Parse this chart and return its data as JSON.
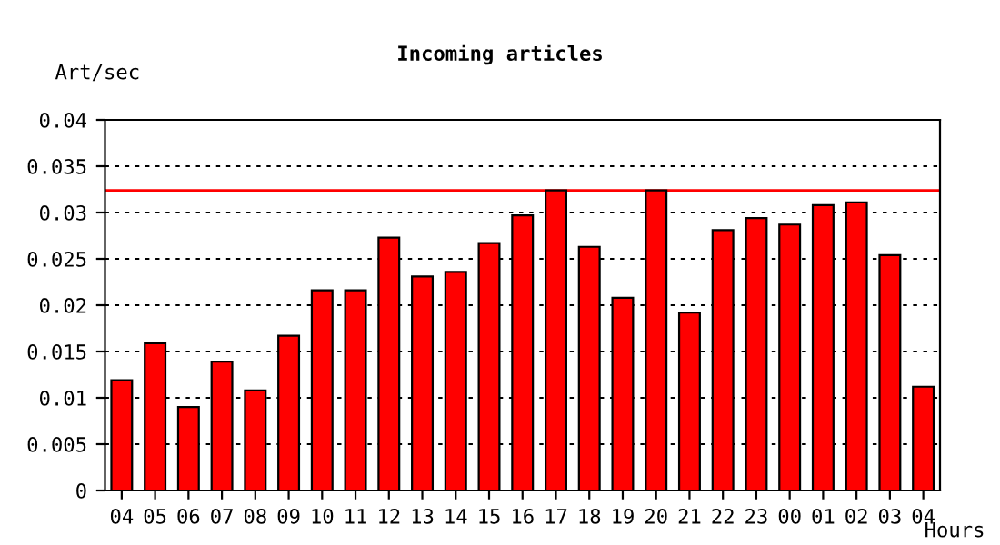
{
  "chart_data": {
    "type": "bar",
    "title": "Incoming articles",
    "ylabel": "Art/sec",
    "xlabel": "Hours",
    "categories": [
      "04",
      "05",
      "06",
      "07",
      "08",
      "09",
      "10",
      "11",
      "12",
      "13",
      "14",
      "15",
      "16",
      "17",
      "18",
      "19",
      "20",
      "21",
      "22",
      "23",
      "00",
      "01",
      "02",
      "03",
      "04"
    ],
    "values": [
      0.0119,
      0.0159,
      0.009,
      0.0139,
      0.0108,
      0.0167,
      0.0216,
      0.0216,
      0.0273,
      0.0231,
      0.0236,
      0.0267,
      0.0297,
      0.0324,
      0.0263,
      0.0208,
      0.0324,
      0.0192,
      0.0281,
      0.0294,
      0.0287,
      0.0308,
      0.0311,
      0.0254,
      0.0112
    ],
    "color": "#ff0000",
    "ylim": [
      0,
      0.04
    ],
    "yticks": [
      0,
      0.005,
      0.01,
      0.015,
      0.02,
      0.025,
      0.03,
      0.035,
      0.04
    ],
    "grid": "y",
    "ref_lines": [
      {
        "axis": "y",
        "value": 0.0324,
        "color": "#ff0000"
      }
    ]
  }
}
